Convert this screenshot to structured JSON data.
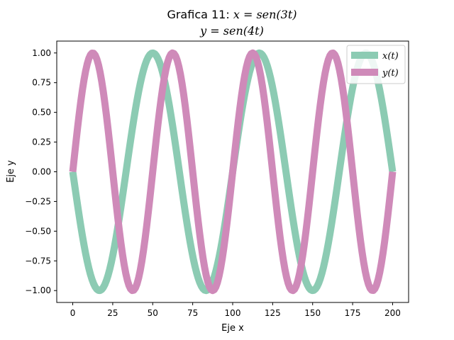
{
  "chart_data": {
    "type": "line",
    "title_line1_prefix": "Grafica 11: ",
    "title_line1_math": "x = sen(3t)",
    "title_line2_math": "y = sen(4t)",
    "xlabel": "Eje x",
    "ylabel": "Eje y",
    "xlim": [
      -10,
      210
    ],
    "ylim": [
      -1.1,
      1.1
    ],
    "x_ticks": [
      0,
      25,
      50,
      75,
      100,
      125,
      150,
      175,
      200
    ],
    "x_tick_labels": [
      "0",
      "25",
      "50",
      "75",
      "100",
      "125",
      "150",
      "175",
      "200"
    ],
    "y_ticks": [
      -1.0,
      -0.75,
      -0.5,
      -0.25,
      0.0,
      0.25,
      0.5,
      0.75,
      1.0
    ],
    "y_tick_labels": [
      "−1.00",
      "−0.75",
      "−0.50",
      "−0.25",
      "0.00",
      "0.25",
      "0.50",
      "0.75",
      "1.00"
    ],
    "x_range": [
      0,
      200
    ],
    "t_range": [
      -3.14159,
      3.14159
    ],
    "samples": 200,
    "legend_position": "upper right",
    "grid": false,
    "series": [
      {
        "name": "x(t)",
        "function": "sin(3t)",
        "color": "#8ccbb3",
        "values": []
      },
      {
        "name": "y(t)",
        "function": "sin(4t)",
        "color": "#cf8ab9",
        "values": []
      }
    ]
  }
}
